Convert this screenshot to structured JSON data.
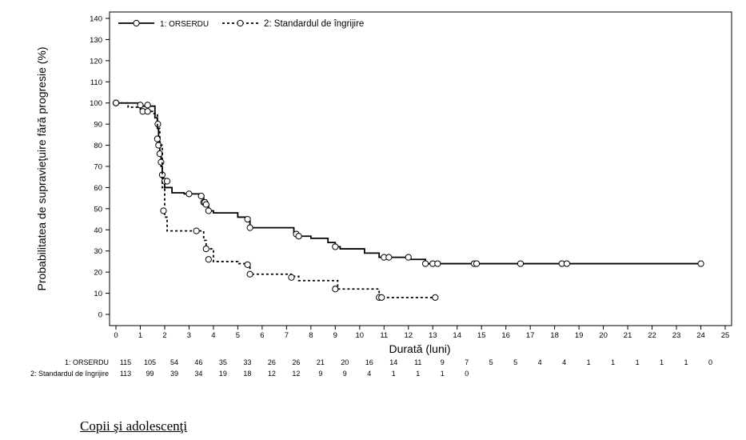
{
  "chart_data": {
    "type": "line",
    "subtype": "kaplan-meier-step",
    "title": "",
    "xlabel": "Durată (luni)",
    "ylabel": "Probabilitatea de supravieţuire fără progresie (%)",
    "xlim": [
      0,
      25
    ],
    "ylim": [
      0,
      140
    ],
    "xticks": [
      "0",
      "1",
      "2",
      "3",
      "4",
      "5",
      "6",
      "7",
      "8",
      "9",
      "10",
      "11",
      "12",
      "13",
      "14",
      "15",
      "16",
      "17",
      "18",
      "19",
      "20",
      "21",
      "22",
      "23",
      "24",
      "25"
    ],
    "yticks": [
      "0",
      "10",
      "20",
      "30",
      "40",
      "50",
      "60",
      "70",
      "80",
      "90",
      "100",
      "110",
      "120",
      "130",
      "140"
    ],
    "grid": false,
    "legend_position": "top-left",
    "series": [
      {
        "name": "1: ORSERDU",
        "line_style": "solid",
        "color": "#000000",
        "step_x": [
          0,
          1.0,
          1.6,
          1.7,
          1.75,
          1.8,
          1.85,
          1.9,
          1.95,
          2.0,
          2.3,
          2.8,
          3.5,
          3.6,
          3.7,
          3.8,
          4.0,
          5.0,
          5.4,
          5.5,
          6.0,
          7.3,
          7.5,
          8.0,
          8.7,
          9.0,
          9.2,
          10.2,
          10.8,
          11.3,
          12.0,
          12.7,
          13.3,
          18.0,
          24.0
        ],
        "step_y": [
          100,
          98.5,
          93,
          88,
          81,
          75,
          70,
          65,
          62,
          60,
          57.5,
          57,
          56,
          54,
          52,
          49,
          48,
          46,
          44,
          41,
          41,
          38,
          37,
          36,
          34,
          32,
          31,
          29,
          27,
          27,
          26,
          24,
          24,
          24,
          24
        ],
        "censor_x": [
          0,
          1.0,
          1.3,
          1.7,
          1.72,
          1.75,
          1.8,
          1.85,
          1.9,
          2.0,
          2.1,
          3.0,
          3.5,
          3.6,
          3.65,
          3.7,
          3.8,
          5.4,
          5.5,
          7.4,
          7.5,
          9.0,
          11.0,
          11.2,
          12.0,
          12.7,
          13.0,
          13.2,
          14.7,
          14.8,
          16.6,
          18.3,
          18.5,
          24.0
        ],
        "censor_y": [
          100,
          99,
          99,
          83,
          90,
          80,
          76,
          72,
          66,
          63,
          63,
          57,
          56,
          53,
          53,
          52,
          49,
          45,
          41,
          38,
          37,
          32,
          27,
          27,
          27,
          24,
          24,
          24,
          24,
          24,
          24,
          24,
          24,
          24
        ]
      },
      {
        "name": "2: Standardul de îngrijire",
        "line_style": "dashed",
        "color": "#000000",
        "step_x": [
          0,
          0.5,
          1.0,
          1.5,
          1.7,
          1.8,
          1.9,
          2.0,
          2.1,
          3.3,
          3.6,
          3.7,
          4.0,
          5.0,
          5.5,
          7.2,
          7.5,
          9.1,
          10.8,
          13.1
        ],
        "step_y": [
          100,
          98,
          96,
          95,
          88,
          80,
          60,
          46,
          39.5,
          39.5,
          35,
          31,
          25,
          24,
          19,
          18,
          16,
          12,
          8,
          8
        ],
        "censor_x": [
          0,
          1.1,
          1.3,
          1.95,
          3.3,
          3.7,
          3.8,
          5.4,
          5.5,
          7.2,
          9.0,
          10.8,
          10.9,
          13.1
        ],
        "censor_y": [
          100,
          96,
          96,
          49,
          39.5,
          31,
          26,
          23.5,
          19,
          17.5,
          12,
          8,
          8,
          8
        ]
      }
    ],
    "at_risk": {
      "label": "",
      "times": [
        0,
        1,
        2,
        3,
        4,
        5,
        6,
        7,
        8,
        9,
        10,
        11,
        12,
        13,
        14,
        15,
        16,
        17,
        18,
        19,
        20,
        21,
        22,
        23,
        24
      ],
      "rows": [
        {
          "label": "1: ORSERDU",
          "values": [
            "115",
            "105",
            "54",
            "46",
            "35",
            "33",
            "26",
            "26",
            "21",
            "20",
            "16",
            "14",
            "11",
            "9",
            "7",
            "5",
            "5",
            "4",
            "4",
            "1",
            "1",
            "1",
            "1",
            "1",
            "0"
          ]
        },
        {
          "label": "2: Standardul de îngrijire",
          "values": [
            "113",
            "99",
            "39",
            "34",
            "19",
            "18",
            "12",
            "12",
            "9",
            "9",
            "4",
            "1",
            "1",
            "1",
            "0"
          ]
        }
      ]
    }
  },
  "section_heading": "Copii şi adolescenţi"
}
